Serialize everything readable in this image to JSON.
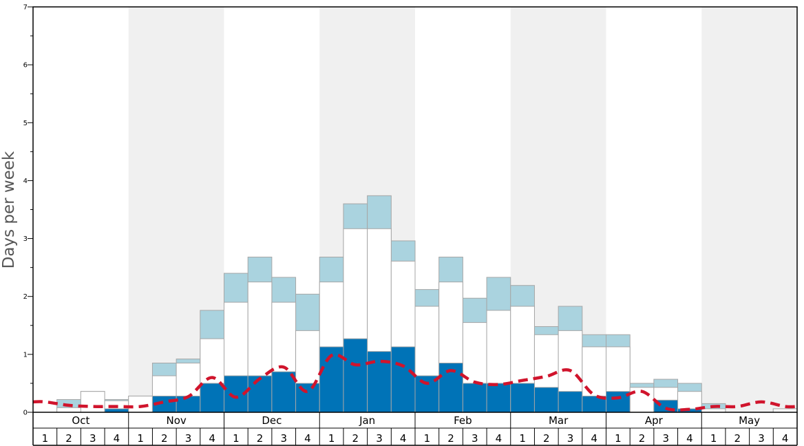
{
  "chart_data": {
    "type": "bar",
    "title": "",
    "ylabel": "Days per week",
    "ylim": [
      0,
      7
    ],
    "yticks": [
      "0",
      "1",
      "2",
      "3",
      "4",
      "5",
      "6",
      "7"
    ],
    "months": [
      "Oct",
      "Nov",
      "Dec",
      "Jan",
      "Feb",
      "Mar",
      "Apr",
      "May"
    ],
    "weeks": [
      "1",
      "2",
      "3",
      "4"
    ],
    "categories": [
      "Oct 1",
      "Oct 2",
      "Oct 3",
      "Oct 4",
      "Nov 1",
      "Nov 2",
      "Nov 3",
      "Nov 4",
      "Dec 1",
      "Dec 2",
      "Dec 3",
      "Dec 4",
      "Jan 1",
      "Jan 2",
      "Jan 3",
      "Jan 4",
      "Feb 1",
      "Feb 2",
      "Feb 3",
      "Feb 4",
      "Mar 1",
      "Mar 2",
      "Mar 3",
      "Mar 4",
      "Apr 1",
      "Apr 2",
      "Apr 3",
      "Apr 4",
      "May 1",
      "May 2",
      "May 3",
      "May 4"
    ],
    "series": [
      {
        "values": [
          0,
          0,
          0,
          0.06,
          0,
          0.28,
          0.28,
          0.5,
          0.63,
          0.63,
          0.7,
          0.5,
          1.13,
          1.27,
          1.05,
          1.13,
          0.63,
          0.85,
          0.5,
          0.5,
          0.5,
          0.43,
          0.36,
          0.28,
          0.36,
          0,
          0.21,
          0.06,
          0,
          0,
          0,
          0
        ]
      },
      {
        "values": [
          0,
          0.08,
          0.36,
          0.2,
          0.28,
          0.63,
          0.85,
          1.27,
          1.9,
          2.25,
          1.9,
          1.41,
          2.25,
          3.17,
          3.17,
          2.61,
          1.83,
          2.25,
          1.55,
          1.76,
          1.83,
          1.34,
          1.41,
          1.13,
          1.13,
          0.43,
          0.43,
          0.36,
          0.06,
          0,
          0,
          0.06
        ]
      },
      {
        "values": [
          0,
          0.22,
          0.36,
          0.22,
          0.28,
          0.85,
          0.92,
          1.76,
          2.4,
          2.68,
          2.33,
          2.04,
          2.68,
          3.6,
          3.74,
          2.96,
          2.12,
          2.68,
          1.97,
          2.33,
          2.19,
          1.48,
          1.83,
          1.34,
          1.34,
          0.5,
          0.57,
          0.5,
          0.15,
          0,
          0,
          0.06
        ]
      },
      {
        "values": [
          0.18,
          0.12,
          0.1,
          0.1,
          0.1,
          0.18,
          0.27,
          0.6,
          0.26,
          0.58,
          0.78,
          0.36,
          0.98,
          0.82,
          0.88,
          0.8,
          0.5,
          0.72,
          0.52,
          0.48,
          0.55,
          0.62,
          0.72,
          0.3,
          0.25,
          0.36,
          0.07,
          0.05,
          0.1,
          0.1,
          0.18,
          0.1
        ]
      }
    ],
    "colors": {
      "dark_bar": "#0073b7",
      "mid_bar": "#ffffff",
      "light_bar": "#aad3df",
      "line": "#d0142c",
      "shade": "#f0f0f0",
      "bar_stroke": "#a6a6a6"
    },
    "grid": false,
    "legend": "none"
  }
}
